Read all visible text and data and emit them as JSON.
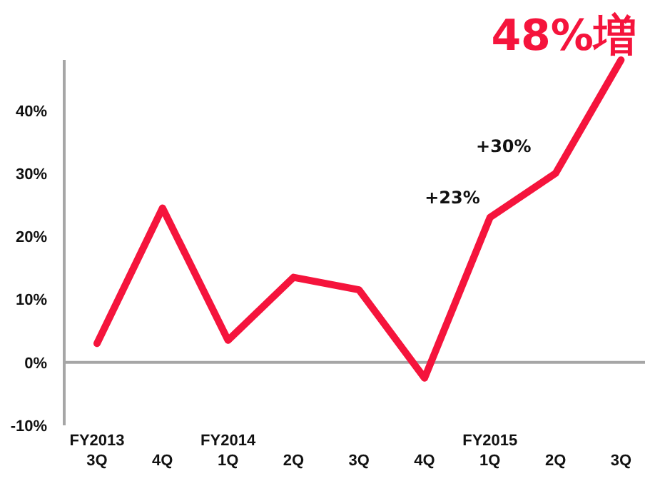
{
  "chart_data": {
    "type": "line",
    "categories": [
      "FY2013 3Q",
      "4Q",
      "FY2014 1Q",
      "2Q",
      "3Q",
      "4Q",
      "FY2015 1Q",
      "2Q",
      "3Q"
    ],
    "series": [
      {
        "color": "#f5143c",
        "values": [
          3,
          24.5,
          3.5,
          13.5,
          11.5,
          -2.5,
          23,
          30,
          48
        ],
        "value_labels": [
          null,
          null,
          null,
          null,
          null,
          null,
          "+23%",
          "+30%",
          "48%増"
        ]
      }
    ],
    "ylim": [
      -10,
      48
    ],
    "yticks": [
      {
        "value": -10,
        "label": "-10%"
      },
      {
        "value": 0,
        "label": "0%"
      },
      {
        "value": 10,
        "label": "10%"
      },
      {
        "value": 20,
        "label": "20%"
      },
      {
        "value": 30,
        "label": "30%"
      },
      {
        "value": 40,
        "label": "40%"
      }
    ],
    "marker": "none",
    "line_style": "solid"
  }
}
